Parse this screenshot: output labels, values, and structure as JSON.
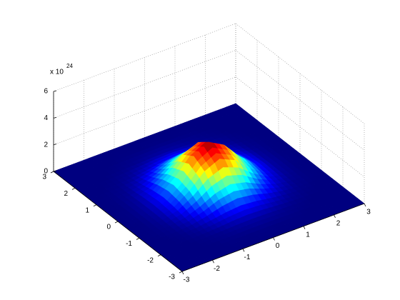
{
  "chart_data": {
    "type": "surface",
    "x": [
      -3,
      -2.5,
      -2,
      -1.5,
      -1,
      -0.5,
      0,
      0.5,
      1,
      1.5,
      2,
      2.5,
      3
    ],
    "y": [
      -3,
      -2.5,
      -2,
      -1.5,
      -1,
      -0.5,
      0,
      0.5,
      1,
      1.5,
      2,
      2.5,
      3
    ],
    "z": [
      [
        0,
        0,
        0,
        0,
        0,
        0,
        0,
        0,
        0,
        0,
        0,
        0,
        0
      ],
      [
        0,
        0,
        0,
        0,
        0.01,
        0.01,
        0.02,
        0.01,
        0.01,
        0,
        0,
        0,
        0
      ],
      [
        0,
        0,
        0,
        0.02,
        0.05,
        0.1,
        0.12,
        0.1,
        0.05,
        0.02,
        0,
        0,
        0
      ],
      [
        0,
        0,
        0.02,
        0.08,
        0.23,
        0.42,
        0.52,
        0.42,
        0.23,
        0.08,
        0.02,
        0,
        0
      ],
      [
        0,
        0.01,
        0.05,
        0.23,
        0.64,
        1.2,
        1.48,
        1.2,
        0.64,
        0.23,
        0.05,
        0.01,
        0
      ],
      [
        0,
        0.01,
        0.1,
        0.42,
        1.2,
        2.24,
        2.76,
        2.24,
        1.2,
        0.42,
        0.1,
        0.01,
        0
      ],
      [
        0,
        0.02,
        0.12,
        0.52,
        1.48,
        2.76,
        3.4,
        2.76,
        1.48,
        0.52,
        0.12,
        0.02,
        0
      ],
      [
        0,
        0.01,
        0.1,
        0.42,
        1.2,
        2.24,
        2.76,
        2.24,
        1.2,
        0.42,
        0.1,
        0.01,
        0
      ],
      [
        0,
        0.01,
        0.05,
        0.23,
        0.64,
        1.2,
        1.48,
        1.2,
        0.64,
        0.23,
        0.05,
        0.01,
        0
      ],
      [
        0,
        0,
        0.02,
        0.08,
        0.23,
        0.42,
        0.52,
        0.42,
        0.23,
        0.08,
        0.02,
        0,
        0
      ],
      [
        0,
        0,
        0,
        0.02,
        0.05,
        0.1,
        0.12,
        0.1,
        0.05,
        0.02,
        0,
        0,
        0
      ],
      [
        0,
        0,
        0,
        0,
        0.01,
        0.01,
        0.02,
        0.01,
        0.01,
        0,
        0,
        0,
        0
      ],
      [
        0,
        0,
        0,
        0,
        0,
        0,
        0,
        0,
        0,
        0,
        0,
        0,
        0
      ]
    ],
    "colormap": "jet",
    "xlim": [
      -3,
      3
    ],
    "ylim": [
      -3,
      3
    ],
    "zlim": [
      0,
      6
    ],
    "xticks": [
      -3,
      -2,
      -1,
      0,
      1,
      2,
      3
    ],
    "yticks": [
      -3,
      -2,
      -1,
      0,
      1,
      2,
      3
    ],
    "zticks": [
      0,
      2,
      4,
      6
    ],
    "z_exponent_base": "x 10",
    "z_exponent": "24",
    "grid": true
  }
}
